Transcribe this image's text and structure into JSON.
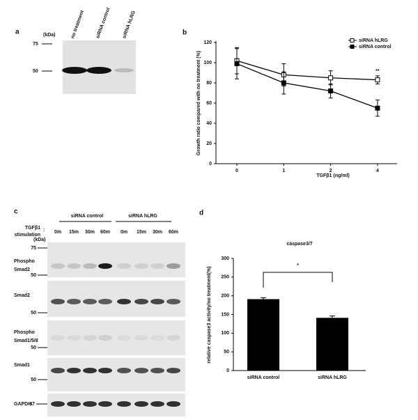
{
  "panel_a": {
    "label": "a",
    "unit": "(kDa)",
    "markers": [
      75,
      50
    ],
    "lanes": [
      "no treatment",
      "siRNA control",
      "siRNA hLRG"
    ]
  },
  "chart_data": [
    {
      "type": "line",
      "label": "b",
      "ylabel": "Growth ratio compared with no treatment (%)",
      "xlabel": "TGFβ1 (ng/ml)",
      "categories": [
        "0",
        "1",
        "2",
        "4"
      ],
      "ylim": [
        0,
        120
      ],
      "yticks": [
        0,
        20,
        40,
        60,
        80,
        100,
        120
      ],
      "legend": "upper right",
      "annotation": "**",
      "series": [
        {
          "name": "siRNA hLRG",
          "color": "#000000",
          "marker_fill": "#ffffff",
          "values": [
            102,
            88,
            85,
            83
          ],
          "errors": [
            13,
            11,
            7,
            4
          ]
        },
        {
          "name": "siRNA control",
          "color": "#000000",
          "marker_fill": "#000000",
          "values": [
            99,
            80,
            72,
            55
          ],
          "errors": [
            15,
            11,
            7,
            8
          ]
        }
      ]
    },
    {
      "type": "bar",
      "label": "d",
      "title": "caspase3/7",
      "ylabel": "relative caspase3 activity/no treatment(%)",
      "categories": [
        "siRNA control",
        "siRNA hLRG"
      ],
      "values": [
        191,
        141
      ],
      "errors": [
        4,
        5
      ],
      "color": "#000000",
      "ylim": [
        0,
        300
      ],
      "yticks": [
        0,
        50,
        100,
        150,
        200,
        250,
        300
      ],
      "annotation": "*"
    }
  ],
  "panel_c": {
    "label": "c",
    "groups": [
      "siRNA control",
      "siRNA hLRG"
    ],
    "stimulation": [
      "TGFβ1",
      "stimulation"
    ],
    "colon": ":",
    "unit": "(kDa)",
    "times": [
      "0m",
      "15m",
      "30m",
      "60m",
      "0m",
      "15m",
      "30m",
      "60m"
    ],
    "rows": [
      {
        "label": [
          "Phospho",
          "Smad2"
        ],
        "markers": [
          75,
          50
        ]
      },
      {
        "label": [
          "Smad2"
        ],
        "markers": [
          50
        ]
      },
      {
        "label": [
          "Phospho",
          "Smad1/5/8"
        ],
        "markers": [
          50
        ]
      },
      {
        "label": [
          "Smad1"
        ],
        "markers": [
          50
        ]
      },
      {
        "label": [
          "GAPDH"
        ],
        "markers": [
          37
        ]
      }
    ]
  }
}
